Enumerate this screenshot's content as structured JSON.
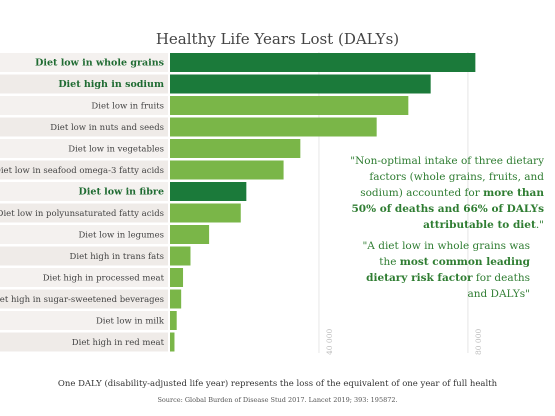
{
  "colors": {
    "highlight_bar": "#1b7a3a",
    "normal_bar": "#7ab648",
    "row_bg_a": "#f4f1ef",
    "row_bg_b": "#efebe8",
    "quote_text": "#2f7d32"
  },
  "chart_data": {
    "type": "bar",
    "orientation": "horizontal",
    "title": "Healthy Life Years Lost (DALYs)",
    "categories": [
      "Diet low in whole grains",
      "Diet high in sodium",
      "Diet low in fruits",
      "Diet low in nuts and seeds",
      "Diet low in vegetables",
      "Diet low in seafood omega-3 fatty acids",
      "Diet low in fibre",
      "Diet low in polyunsaturated fatty acids",
      "Diet low in legumes",
      "Diet high in trans fats",
      "Diet high in processed meat",
      "Diet high in sugar-sweetened beverages",
      "Diet low in milk",
      "Diet high in red meat"
    ],
    "highlighted": [
      true,
      true,
      false,
      false,
      false,
      false,
      true,
      false,
      false,
      false,
      false,
      false,
      false,
      false
    ],
    "values": [
      82000,
      70000,
      64000,
      55500,
      35000,
      30500,
      20500,
      19000,
      10500,
      5500,
      3500,
      3000,
      1800,
      1200
    ],
    "xlim": [
      0,
      88000
    ],
    "ticks": [
      40000,
      80000
    ],
    "tick_labels": [
      "40 000",
      "80 000"
    ]
  },
  "quotes": {
    "quote1_normal": "\"Non-optimal intake of three dietary factors (whole grains, fruits, and sodium) accounted for ",
    "quote1_bold": "more than 50% of deaths and 66% of DALYs attributable to diet",
    "quote1_end": ".\"",
    "quote2_normal": "\"A diet low in whole grains was the ",
    "quote2_bold": "most common leading dietary risk factor",
    "quote2_end": " for deaths and DALYs\""
  },
  "footnote": "One DALY (disability-adjusted life year) represents the loss of the equivalent of one year of full health",
  "source": "Source: Global Burden of Disease Stud 2017. Lancet 2019; 393: 195872."
}
